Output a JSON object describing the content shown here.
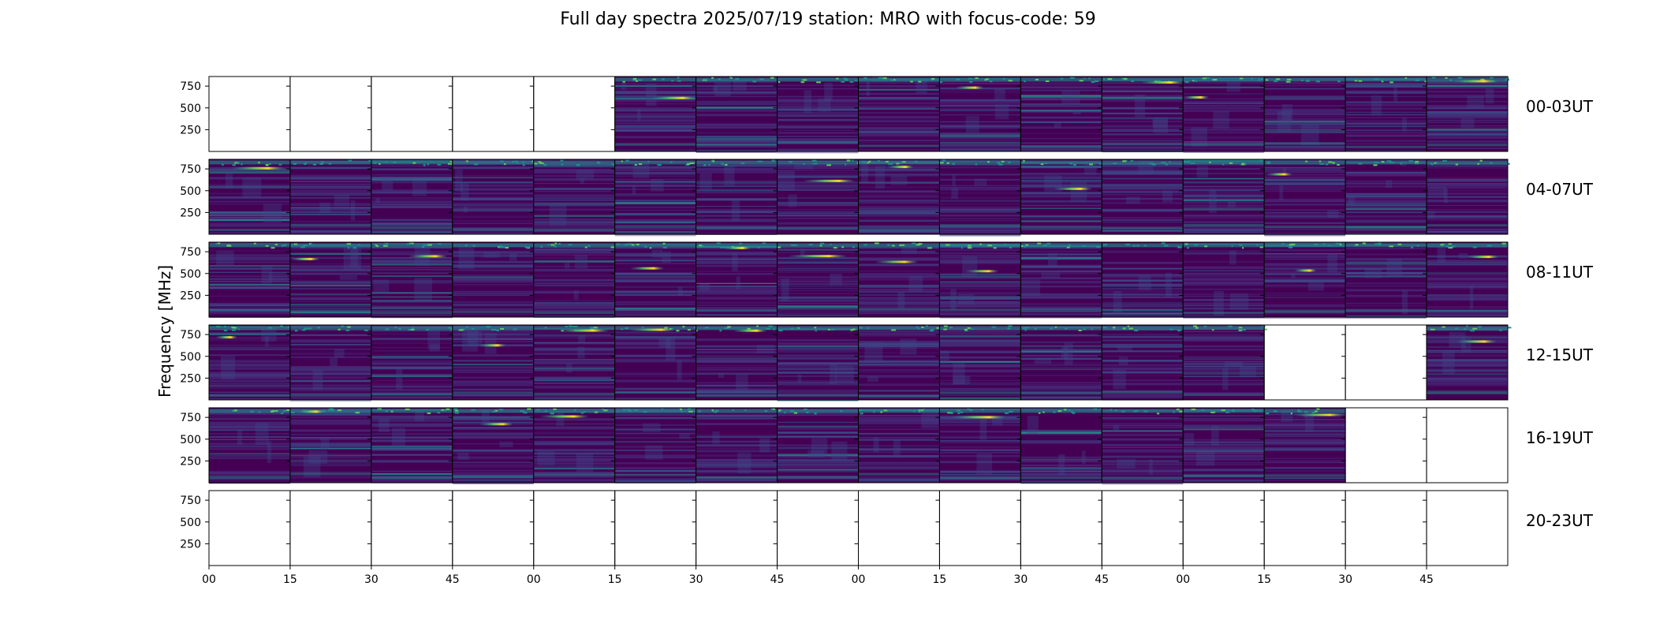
{
  "chart_data": {
    "type": "heatmap",
    "title": "Full day spectra 2025/07/19 station: MRO with focus-code: 59",
    "ylabel": "Frequency [MHz]",
    "xlabel": "",
    "y_ticks": [
      250,
      500,
      750
    ],
    "y_tick_labels": [
      "250",
      "500",
      "750"
    ],
    "ylim": [
      0,
      860
    ],
    "x_tick_labels": [
      "00",
      "15",
      "30",
      "45",
      "00",
      "15",
      "30",
      "45",
      "00",
      "15",
      "30",
      "45",
      "00",
      "15",
      "30",
      "45"
    ],
    "colormap": "viridis",
    "rows": [
      {
        "label": "00-03UT",
        "available": [
          0,
          0,
          0,
          0,
          0,
          1,
          1,
          1,
          1,
          1,
          1,
          1,
          1,
          1,
          1,
          1
        ]
      },
      {
        "label": "04-07UT",
        "available": [
          1,
          1,
          1,
          1,
          1,
          1,
          1,
          1,
          1,
          1,
          1,
          1,
          1,
          1,
          1,
          1
        ]
      },
      {
        "label": "08-11UT",
        "available": [
          1,
          1,
          1,
          1,
          1,
          1,
          1,
          1,
          1,
          1,
          1,
          1,
          1,
          1,
          1,
          1
        ]
      },
      {
        "label": "12-15UT",
        "available": [
          1,
          1,
          1,
          1,
          1,
          1,
          1,
          1,
          1,
          1,
          1,
          1,
          1,
          0,
          0,
          1
        ]
      },
      {
        "label": "16-19UT",
        "available": [
          1,
          1,
          1,
          1,
          1,
          1,
          1,
          1,
          1,
          1,
          1,
          1,
          1,
          1,
          0,
          0
        ]
      },
      {
        "label": "20-23UT",
        "available": [
          0,
          0,
          0,
          0,
          0,
          0,
          0,
          0,
          0,
          0,
          0,
          0,
          0,
          0,
          0,
          0
        ]
      }
    ]
  },
  "colors": {
    "background": "#ffffff",
    "low": "#440154",
    "mid": "#3b528b",
    "teal": "#21918c",
    "green": "#5ec962",
    "high": "#fde725"
  }
}
